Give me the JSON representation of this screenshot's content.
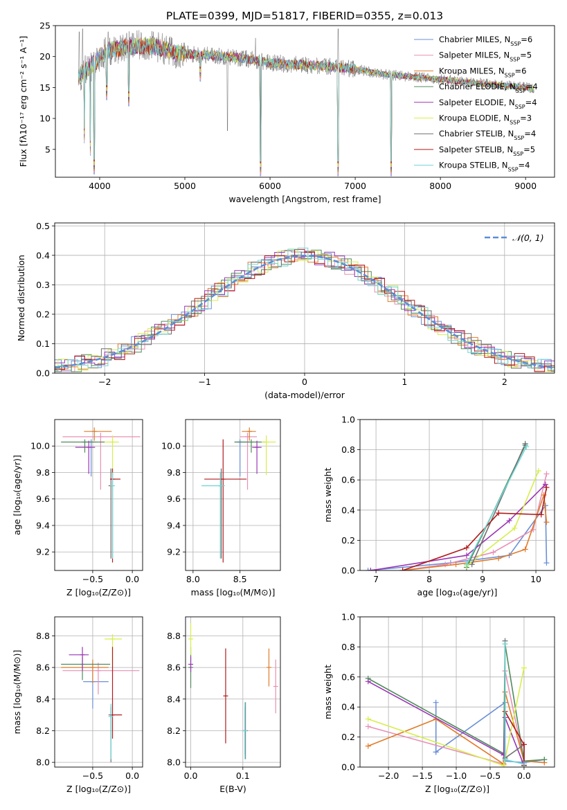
{
  "figure_title": "PLATE=0399, MJD=51817, FIBERID=0355, z=0.013",
  "series": [
    {
      "name": "Chabrier MILES",
      "nssp": "6",
      "color": "#6b8fd6"
    },
    {
      "name": "Salpeter MILES",
      "nssp": "5",
      "color": "#e88fb4"
    },
    {
      "name": "Kroupa MILES",
      "nssp": "6",
      "color": "#e07b2a"
    },
    {
      "name": "Chabrier ELODIE",
      "nssp": "4",
      "color": "#4f8c5a"
    },
    {
      "name": "Salpeter ELODIE",
      "nssp": "4",
      "color": "#9a35b5"
    },
    {
      "name": "Kroupa ELODIE",
      "nssp": "3",
      "color": "#d6ee4a"
    },
    {
      "name": "Chabrier STELIB",
      "nssp": "4",
      "color": "#6e6e6e"
    },
    {
      "name": "Salpeter STELIB",
      "nssp": "5",
      "color": "#b01a1a"
    },
    {
      "name": "Kroupa STELIB",
      "nssp": "4",
      "color": "#6fd6d6"
    }
  ],
  "chart_data": [
    {
      "id": "spectrum",
      "type": "line",
      "xlabel": "wavelength [Angstrom, rest frame]",
      "ylabel": "Flux [fλ10⁻¹⁷ erg cm⁻² s⁻¹ A⁻¹]",
      "xlim": [
        3480,
        9340
      ],
      "ylim": [
        0.5,
        25
      ],
      "xticks": [
        "4000",
        "5000",
        "6000",
        "7000",
        "8000",
        "9000"
      ],
      "xtick_values": [
        4000,
        5000,
        6000,
        7000,
        8000,
        9000
      ],
      "yticks": [
        "5",
        "10",
        "15",
        "20",
        "25"
      ],
      "ytick_values": [
        5,
        10,
        15,
        20,
        25
      ],
      "legend": "upper right",
      "continuum": [
        [
          3750,
          16.5
        ],
        [
          3850,
          18
        ],
        [
          3950,
          19
        ],
        [
          4000,
          20
        ],
        [
          4100,
          21
        ],
        [
          4300,
          21.5
        ],
        [
          4500,
          21.8
        ],
        [
          4700,
          21.5
        ],
        [
          4900,
          20.5
        ],
        [
          5200,
          20.3
        ],
        [
          5500,
          20
        ],
        [
          5800,
          19.5
        ],
        [
          6000,
          19
        ],
        [
          6300,
          18.7
        ],
        [
          6600,
          18.5
        ],
        [
          7000,
          18
        ],
        [
          7300,
          17.2
        ],
        [
          7600,
          16.8
        ],
        [
          8000,
          16.3
        ],
        [
          8300,
          15.9
        ],
        [
          8600,
          15.5
        ],
        [
          9000,
          15
        ],
        [
          9100,
          14.6
        ]
      ],
      "dips": [
        [
          3820,
          6
        ],
        [
          3890,
          4
        ],
        [
          3935,
          1
        ],
        [
          4080,
          13
        ],
        [
          4340,
          12
        ],
        [
          5180,
          16
        ],
        [
          5890,
          0.7
        ],
        [
          6800,
          0.7
        ],
        [
          7420,
          0.7
        ]
      ],
      "spikes": [
        [
          3760,
          24
        ],
        [
          3800,
          24.5
        ],
        [
          4100,
          24
        ],
        [
          4850,
          23
        ],
        [
          5500,
          8
        ],
        [
          5830,
          23
        ],
        [
          6800,
          24.5
        ]
      ]
    },
    {
      "id": "residuals",
      "type": "histogram",
      "xlabel": "(data-model)/error",
      "ylabel": "Normed distribution",
      "xlim": [
        -2.5,
        2.5
      ],
      "ylim": [
        0,
        0.51
      ],
      "xticks": [
        "−2",
        "−1",
        "0",
        "1",
        "2"
      ],
      "xtick_values": [
        -2,
        -1,
        0,
        1,
        2
      ],
      "yticks": [
        "0.0",
        "0.1",
        "0.2",
        "0.3",
        "0.4",
        "0.5"
      ],
      "ytick_values": [
        0,
        0.1,
        0.2,
        0.3,
        0.4,
        0.5
      ],
      "bin_width": 0.1,
      "reference_label": "𝒩(0, 1)",
      "reference_color": "#5b8dd6",
      "legend": "upper right"
    },
    {
      "id": "age_vs_z",
      "type": "scatter",
      "xlabel": "Z [log₁₀(Z/Z⊙)]",
      "ylabel": "age  [log₁₀(age/yr)]",
      "xlim": [
        -0.98,
        0.13
      ],
      "ylim": [
        9.06,
        10.2
      ],
      "xticks": [
        "−0.5",
        "0.0"
      ],
      "xtick_values": [
        -0.5,
        0.0
      ],
      "yticks": [
        "9.2",
        "9.4",
        "9.6",
        "9.8",
        "10.0"
      ],
      "ytick_values": [
        9.2,
        9.4,
        9.6,
        9.8,
        10.0
      ],
      "points": [
        {
          "x": -0.52,
          "xerr": [
            0.12,
            0.06
          ],
          "y": 10.03,
          "yerr": [
            0.26,
            0.02
          ]
        },
        {
          "x": -0.4,
          "xerr": [
            0.48,
            0.5
          ],
          "y": 10.07,
          "yerr": [
            0.4,
            0.03
          ]
        },
        {
          "x": -0.48,
          "xerr": [
            0.13,
            0.22
          ],
          "y": 10.11,
          "yerr": [
            0.07,
            0.03
          ]
        },
        {
          "x": -0.6,
          "xerr": [
            0.3,
            0.25
          ],
          "y": 10.03,
          "yerr": [
            0.08,
            0.02
          ]
        },
        {
          "x": -0.55,
          "xerr": [
            0.17,
            0.08
          ],
          "y": 9.99,
          "yerr": [
            0.2,
            0.05
          ]
        },
        {
          "x": -0.25,
          "xerr": [
            0.1,
            0.08
          ],
          "y": 10.03,
          "yerr": [
            0.25,
            0.05
          ]
        },
        {
          "x": -0.27,
          "xerr": [
            0.01,
            0.01
          ],
          "y": 9.7,
          "yerr": [
            0.55,
            0.13
          ]
        },
        {
          "x": -0.25,
          "xerr": [
            0.03,
            0.1
          ],
          "y": 9.75,
          "yerr": [
            0.63,
            0.08
          ]
        },
        {
          "x": -0.25,
          "xerr": [
            0.01,
            0.01
          ],
          "y": 9.7,
          "yerr": [
            0.55,
            0.1
          ]
        }
      ]
    },
    {
      "id": "age_vs_mass",
      "type": "scatter",
      "xlabel": "mass [log₁₀(M/M⊙)]",
      "ylabel": "",
      "xlim": [
        7.92,
        8.93
      ],
      "ylim": [
        9.06,
        10.2
      ],
      "xticks": [
        "8.0",
        "8.5"
      ],
      "xtick_values": [
        8.0,
        8.5
      ],
      "yticks": [
        "9.2",
        "9.4",
        "9.6",
        "9.8",
        "10.0"
      ],
      "ytick_values": [
        9.2,
        9.4,
        9.6,
        9.8,
        10.0
      ],
      "points": [
        {
          "x": 8.5,
          "xerr": [
            0.05,
            0.1
          ],
          "y": 10.03,
          "yerr": [
            0.26,
            0.02
          ]
        },
        {
          "x": 8.58,
          "xerr": [
            0.08,
            0.1
          ],
          "y": 10.07,
          "yerr": [
            0.4,
            0.03
          ]
        },
        {
          "x": 8.6,
          "xerr": [
            0.08,
            0.07
          ],
          "y": 10.11,
          "yerr": [
            0.07,
            0.03
          ]
        },
        {
          "x": 8.62,
          "xerr": [
            0.18,
            0.15
          ],
          "y": 10.03,
          "yerr": [
            0.08,
            0.02
          ]
        },
        {
          "x": 8.68,
          "xerr": [
            0.05,
            0.05
          ],
          "y": 9.99,
          "yerr": [
            0.2,
            0.05
          ]
        },
        {
          "x": 8.78,
          "xerr": [
            0.05,
            0.1
          ],
          "y": 10.03,
          "yerr": [
            0.25,
            0.05
          ]
        },
        {
          "x": 8.3,
          "xerr": [
            0.02,
            0.02
          ],
          "y": 9.7,
          "yerr": [
            0.55,
            0.13
          ]
        },
        {
          "x": 8.32,
          "xerr": [
            0.2,
            0.25
          ],
          "y": 9.75,
          "yerr": [
            0.63,
            0.3
          ]
        },
        {
          "x": 8.29,
          "xerr": [
            0.2,
            0.05
          ],
          "y": 9.7,
          "yerr": [
            0.55,
            0.1
          ]
        }
      ]
    },
    {
      "id": "weight_vs_age",
      "type": "line",
      "xlabel": "age  [log₁₀(age/yr)]",
      "ylabel": "mass weight",
      "xlim": [
        6.7,
        10.35
      ],
      "ylim": [
        0,
        1.0
      ],
      "xticks": [
        "7",
        "8",
        "9",
        "10"
      ],
      "xtick_values": [
        7,
        8,
        9,
        10
      ],
      "yticks": [
        "0.0",
        "0.2",
        "0.4",
        "0.6",
        "0.8",
        "1.0"
      ],
      "ytick_values": [
        0,
        0.2,
        0.4,
        0.6,
        0.8,
        1.0
      ],
      "lines": [
        [
          [
            6.85,
            0
          ],
          [
            8.4,
            0.05
          ],
          [
            9.5,
            0.1
          ],
          [
            10.18,
            0.43
          ],
          [
            10.2,
            0.05
          ]
        ],
        [
          [
            7.5,
            0
          ],
          [
            8.3,
            0.04
          ],
          [
            9.2,
            0.12
          ],
          [
            9.95,
            0.27
          ],
          [
            10.2,
            0.64
          ]
        ],
        [
          [
            7.5,
            0
          ],
          [
            8.5,
            0.04
          ],
          [
            9.3,
            0.08
          ],
          [
            9.8,
            0.14
          ],
          [
            10.15,
            0.5
          ],
          [
            10.2,
            0.32
          ]
        ],
        [
          [
            8.7,
            0.02
          ],
          [
            9.8,
            0.83
          ]
        ],
        [
          [
            6.9,
            0
          ],
          [
            8.7,
            0.1
          ],
          [
            9.5,
            0.33
          ],
          [
            10.18,
            0.57
          ]
        ],
        [
          [
            8.7,
            0.03
          ],
          [
            9.6,
            0.28
          ],
          [
            10.05,
            0.66
          ]
        ],
        [
          [
            8.8,
            0.04
          ],
          [
            9.8,
            0.84
          ]
        ],
        [
          [
            7.5,
            0
          ],
          [
            8.7,
            0.15
          ],
          [
            9.3,
            0.38
          ],
          [
            10.1,
            0.37
          ],
          [
            10.2,
            0.55
          ]
        ],
        [
          [
            8.7,
            0.04
          ],
          [
            9.82,
            0.82
          ]
        ]
      ]
    },
    {
      "id": "mass_vs_z",
      "type": "scatter",
      "xlabel": "Z [log₁₀(Z/Z⊙)]",
      "ylabel": "mass [log₁₀(M/M⊙)]",
      "xlim": [
        -0.98,
        0.13
      ],
      "ylim": [
        7.97,
        8.92
      ],
      "xticks": [
        "−0.5",
        "0.0"
      ],
      "xtick_values": [
        -0.5,
        0.0
      ],
      "yticks": [
        "8.0",
        "8.2",
        "8.4",
        "8.6",
        "8.8"
      ],
      "ytick_values": [
        8.0,
        8.2,
        8.4,
        8.6,
        8.8
      ],
      "points": [
        {
          "x": -0.5,
          "xerr": [
            0.12,
            0.2
          ],
          "y": 8.51,
          "yerr": [
            0.17,
            0.12
          ]
        },
        {
          "x": -0.43,
          "xerr": [
            0.45,
            0.52
          ],
          "y": 8.58,
          "yerr": [
            0.15,
            0.05
          ]
        },
        {
          "x": -0.5,
          "xerr": [
            0.4,
            0.2
          ],
          "y": 8.6,
          "yerr": [
            0.1,
            0.05
          ]
        },
        {
          "x": -0.63,
          "xerr": [
            0.27,
            0.35
          ],
          "y": 8.62,
          "yerr": [
            0.1,
            0.05
          ]
        },
        {
          "x": -0.63,
          "xerr": [
            0.17,
            0.08
          ],
          "y": 8.68,
          "yerr": [
            0.1,
            0.05
          ]
        },
        {
          "x": -0.25,
          "xerr": [
            0.1,
            0.12
          ],
          "y": 8.78,
          "yerr": [
            0.15,
            0.03
          ]
        },
        {
          "x": -0.27,
          "xerr": [
            0.01,
            0.01
          ],
          "y": 8.3,
          "yerr": [
            0.3,
            0.05
          ]
        },
        {
          "x": -0.25,
          "xerr": [
            0.03,
            0.12
          ],
          "y": 8.3,
          "yerr": [
            0.15,
            0.43
          ]
        },
        {
          "x": -0.27,
          "xerr": [
            0.01,
            0.01
          ],
          "y": 8.29,
          "yerr": [
            0.27,
            0.08
          ]
        }
      ]
    },
    {
      "id": "mass_vs_ebv",
      "type": "scatter",
      "xlabel": "E(B-V)",
      "ylabel": "",
      "xlim": [
        -0.01,
        0.172
      ],
      "ylim": [
        7.97,
        8.92
      ],
      "xticks": [
        "0.0",
        "0.1"
      ],
      "xtick_values": [
        0.0,
        0.1
      ],
      "yticks": [
        "8.0",
        "8.2",
        "8.4",
        "8.6",
        "8.8"
      ],
      "ytick_values": [
        8.0,
        8.2,
        8.4,
        8.6,
        8.8
      ],
      "points": [
        {
          "x": 0.104,
          "xerr": [
            0,
            0
          ],
          "y": 8.2,
          "yerr": [
            0.15,
            0.15
          ]
        },
        {
          "x": 0.163,
          "xerr": [
            0,
            0
          ],
          "y": 8.48,
          "yerr": [
            0.17,
            0.17
          ]
        },
        {
          "x": 0.15,
          "xerr": [
            0,
            0
          ],
          "y": 8.6,
          "yerr": [
            0.12,
            0.12
          ]
        },
        {
          "x": 0.0,
          "xerr": [
            0,
            0
          ],
          "y": 8.6,
          "yerr": [
            0.13,
            0.13
          ]
        },
        {
          "x": 0.0,
          "xerr": [
            0,
            0
          ],
          "y": 8.62,
          "yerr": [
            0.05,
            0.05
          ]
        },
        {
          "x": 0.0,
          "xerr": [
            0,
            0
          ],
          "y": 8.78,
          "yerr": [
            0.1,
            0.1
          ]
        },
        {
          "x": 0.105,
          "xerr": [
            0,
            0
          ],
          "y": 8.2,
          "yerr": [
            0.18,
            0.18
          ]
        },
        {
          "x": 0.067,
          "xerr": [
            0,
            0
          ],
          "y": 8.42,
          "yerr": [
            0.3,
            0.3
          ]
        },
        {
          "x": 0.104,
          "xerr": [
            0,
            0
          ],
          "y": 8.2,
          "yerr": [
            0.18,
            0.18
          ]
        }
      ]
    },
    {
      "id": "weight_vs_z",
      "type": "line",
      "xlabel": "Z [log₁₀(Z/Z⊙)]",
      "ylabel": "mass weight",
      "xlim": [
        -2.42,
        0.45
      ],
      "ylim": [
        0,
        1.0
      ],
      "xticks": [
        "−2.0",
        "−1.5",
        "−1.0",
        "−0.5",
        "0.0"
      ],
      "xtick_values": [
        -2.0,
        -1.5,
        -1.0,
        -0.5,
        0.0
      ],
      "yticks": [
        "0.0",
        "0.2",
        "0.4",
        "0.6",
        "0.8",
        "1.0"
      ],
      "ytick_values": [
        0,
        0.2,
        0.4,
        0.6,
        0.8,
        1.0
      ],
      "lines": [
        [
          [
            -1.3,
            0.1
          ],
          [
            -1.3,
            0.43
          ],
          [
            -1.3,
            0.1
          ],
          [
            -0.28,
            0.43
          ],
          [
            -0.28,
            0.04
          ],
          [
            0.0,
            0.03
          ],
          [
            0.3,
            0.05
          ]
        ],
        [
          [
            -2.3,
            0.27
          ],
          [
            -0.3,
            0.02
          ],
          [
            -0.28,
            0.64
          ],
          [
            0.0,
            0.04
          ],
          [
            0.3,
            0.03
          ]
        ],
        [
          [
            -2.3,
            0.14
          ],
          [
            -1.3,
            0.32
          ],
          [
            -0.3,
            0.02
          ],
          [
            -0.28,
            0.5
          ],
          [
            0.0,
            0.04
          ],
          [
            0.3,
            0.03
          ]
        ],
        [
          [
            -2.3,
            0.59
          ],
          [
            -0.3,
            0.09
          ],
          [
            -0.28,
            0.82
          ],
          [
            0.0,
            0.04
          ],
          [
            0.3,
            0.05
          ]
        ],
        [
          [
            -2.3,
            0.57
          ],
          [
            -0.3,
            0.08
          ],
          [
            -0.28,
            0.33
          ],
          [
            0.0,
            0.01
          ],
          [
            0.0,
            0.15
          ]
        ],
        [
          [
            -2.3,
            0.32
          ],
          [
            -0.3,
            0.01
          ],
          [
            0.0,
            0.66
          ]
        ],
        [
          [
            -0.28,
            0.84
          ],
          [
            -0.28,
            0.06
          ],
          [
            0.0,
            0.15
          ],
          [
            0.0,
            0.01
          ]
        ],
        [
          [
            -0.28,
            0.37
          ],
          [
            0.0,
            0.15
          ],
          [
            0.0,
            0.01
          ]
        ],
        [
          [
            -0.28,
            0.82
          ],
          [
            -0.28,
            0.05
          ],
          [
            0.0,
            0.02
          ]
        ]
      ]
    }
  ]
}
